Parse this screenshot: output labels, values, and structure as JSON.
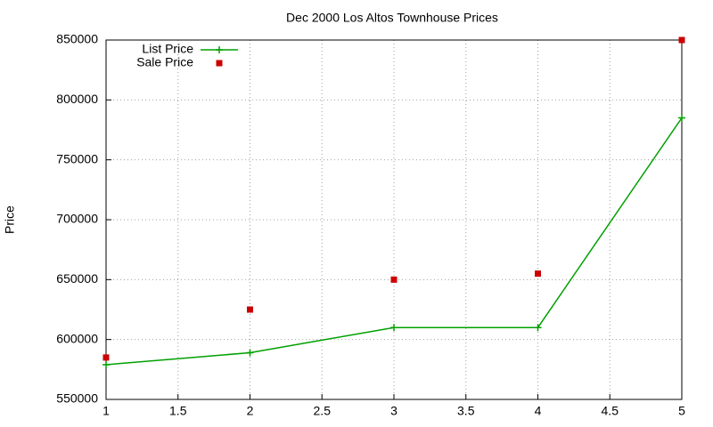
{
  "chart_data": {
    "type": "line",
    "title": "Dec 2000 Los Altos Townhouse Prices",
    "y_label": "Price",
    "x": [
      1,
      2,
      3,
      4,
      5
    ],
    "series": [
      {
        "name": "List Price",
        "color": "#00a000",
        "mode": "lines+markers",
        "marker": "plus",
        "values": [
          579000,
          589000,
          610000,
          610000,
          785000
        ]
      },
      {
        "name": "Sale Price",
        "color": "#cc0000",
        "mode": "markers",
        "marker": "square",
        "values": [
          585000,
          625000,
          650000,
          655000,
          850000
        ]
      }
    ],
    "xlim": [
      1,
      5
    ],
    "xticks": [
      1,
      1.5,
      2,
      2.5,
      3,
      3.5,
      4,
      4.5,
      5
    ],
    "ylim": [
      550000,
      850000
    ],
    "yticks": [
      550000,
      600000,
      650000,
      700000,
      750000,
      800000,
      850000
    ],
    "grid": true,
    "legend": "top-left"
  }
}
